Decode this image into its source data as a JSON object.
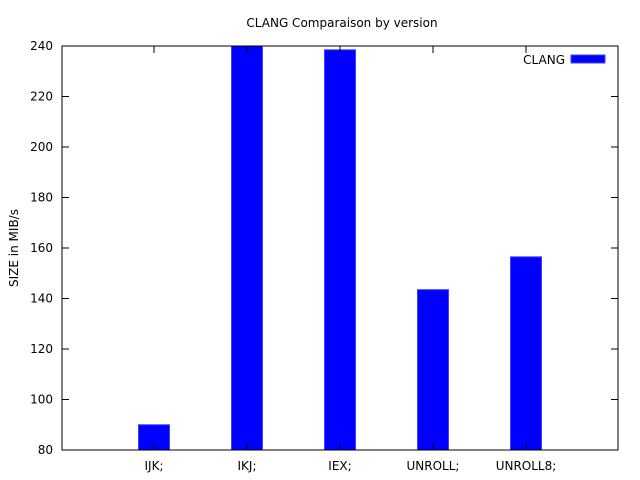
{
  "chart_data": {
    "type": "bar",
    "title": "CLANG Comparaison by version",
    "xlabel": "",
    "ylabel": "SIZE in MIB/s",
    "categories": [
      "IJK;",
      "IKJ;",
      "IEX;",
      "UNROLL;",
      "UNROLL8;"
    ],
    "series": [
      {
        "name": "CLANG",
        "values": [
          90,
          240,
          238.5,
          143.5,
          156.5
        ],
        "color": "#0000ff"
      }
    ],
    "ylim": [
      80,
      240
    ],
    "yticks": [
      80,
      100,
      120,
      140,
      160,
      180,
      200,
      220,
      240
    ],
    "grid": false,
    "legend_position": "top-right"
  }
}
